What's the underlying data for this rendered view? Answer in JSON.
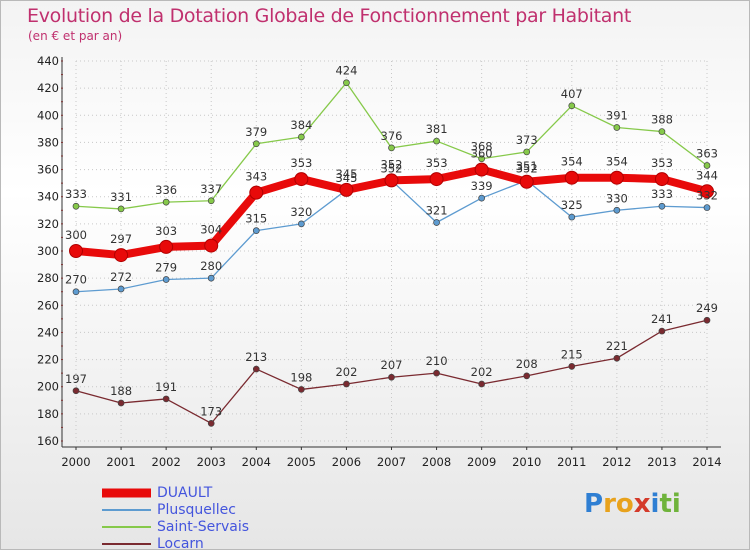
{
  "title": "Evolution de la Dotation Globale de Fonctionnement par Habitant",
  "subtitle": "(en € et par an)",
  "logo": {
    "text": "Proxiti",
    "letters": [
      {
        "ch": "P",
        "color": "#2f7fd3"
      },
      {
        "ch": "r",
        "color": "#e8a21c"
      },
      {
        "ch": "o",
        "color": "#e8a21c"
      },
      {
        "ch": "x",
        "color": "#d43a2a"
      },
      {
        "ch": "i",
        "color": "#2f7fd3"
      },
      {
        "ch": "t",
        "color": "#6fb33b"
      },
      {
        "ch": "i",
        "color": "#6fb33b"
      }
    ]
  },
  "chart_data": {
    "type": "line",
    "x": [
      2000,
      2001,
      2002,
      2003,
      2004,
      2005,
      2006,
      2007,
      2008,
      2009,
      2010,
      2011,
      2012,
      2013,
      2014
    ],
    "ylim": [
      160,
      440
    ],
    "yticks": [
      160,
      180,
      200,
      220,
      240,
      260,
      280,
      300,
      320,
      340,
      360,
      380,
      400,
      420,
      440
    ],
    "grid": true,
    "legend_position": "bottom-left",
    "series": [
      {
        "name": "Saint-Servais",
        "color": "#86c94a",
        "values": [
          333,
          331,
          336,
          337,
          379,
          384,
          424,
          376,
          381,
          368,
          373,
          407,
          391,
          388,
          363
        ]
      },
      {
        "name": "Plusquellec",
        "color": "#5d9bd0",
        "values": [
          270,
          272,
          279,
          280,
          315,
          320,
          345,
          352,
          321,
          339,
          352,
          325,
          330,
          333,
          332
        ]
      },
      {
        "name": "Locarn",
        "color": "#7a2a30",
        "values": [
          197,
          188,
          191,
          173,
          213,
          198,
          202,
          207,
          210,
          202,
          208,
          215,
          221,
          241,
          249
        ]
      },
      {
        "name": "DUAULT",
        "color": "#e80a0a",
        "values": [
          300,
          297,
          303,
          304,
          343,
          353,
          345,
          352,
          353,
          360,
          351,
          354,
          354,
          353,
          344
        ]
      }
    ],
    "legend_order": [
      "DUAULT",
      "Plusquellec",
      "Saint-Servais",
      "Locarn"
    ]
  }
}
